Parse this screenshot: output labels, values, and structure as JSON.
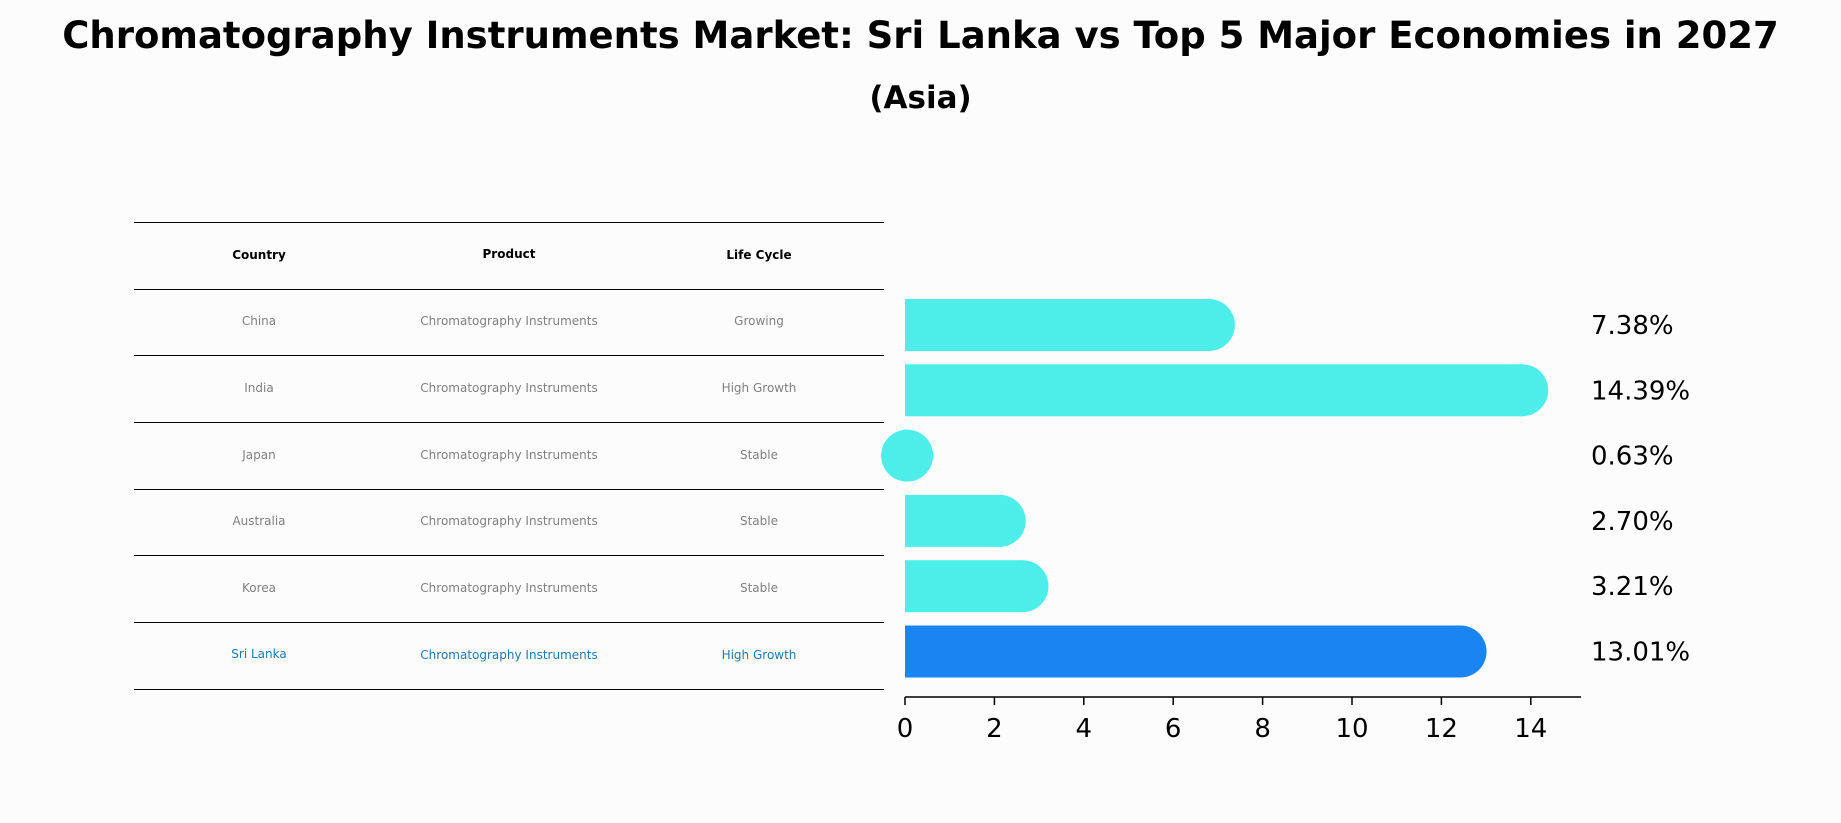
{
  "title": "Chromatography Instruments Market: Sri Lanka vs Top 5 Major Economies in 2027",
  "subtitle": "(Asia)",
  "table": {
    "headers": [
      "Country",
      "Product",
      "Life Cycle"
    ],
    "rows": [
      {
        "country": "China",
        "product": "Chromatography Instruments",
        "life_cycle": "Growing"
      },
      {
        "country": "India",
        "product": "Chromatography Instruments",
        "life_cycle": "High Growth"
      },
      {
        "country": "Japan",
        "product": "Chromatography Instruments",
        "life_cycle": "Stable"
      },
      {
        "country": "Australia",
        "product": "Chromatography Instruments",
        "life_cycle": "Stable"
      },
      {
        "country": "Korea",
        "product": "Chromatography Instruments",
        "life_cycle": "Stable"
      },
      {
        "country": "Sri Lanka",
        "product": "Chromatography Instruments",
        "life_cycle": "High Growth"
      }
    ]
  },
  "chart_data": {
    "type": "bar",
    "orientation": "horizontal",
    "categories": [
      "China",
      "India",
      "Japan",
      "Australia",
      "Korea",
      "Sri Lanka"
    ],
    "values": [
      7.38,
      14.39,
      0.63,
      2.7,
      3.21,
      13.01
    ],
    "value_labels": [
      "7.38%",
      "14.39%",
      "0.63%",
      "2.70%",
      "3.21%",
      "13.01%"
    ],
    "xlim": [
      0,
      15
    ],
    "xticks": [
      0,
      2,
      4,
      6,
      8,
      10,
      12,
      14
    ],
    "grid": false,
    "colors": {
      "default": "#4deeea",
      "highlight": "#1984f2"
    },
    "highlight_index": 5
  }
}
